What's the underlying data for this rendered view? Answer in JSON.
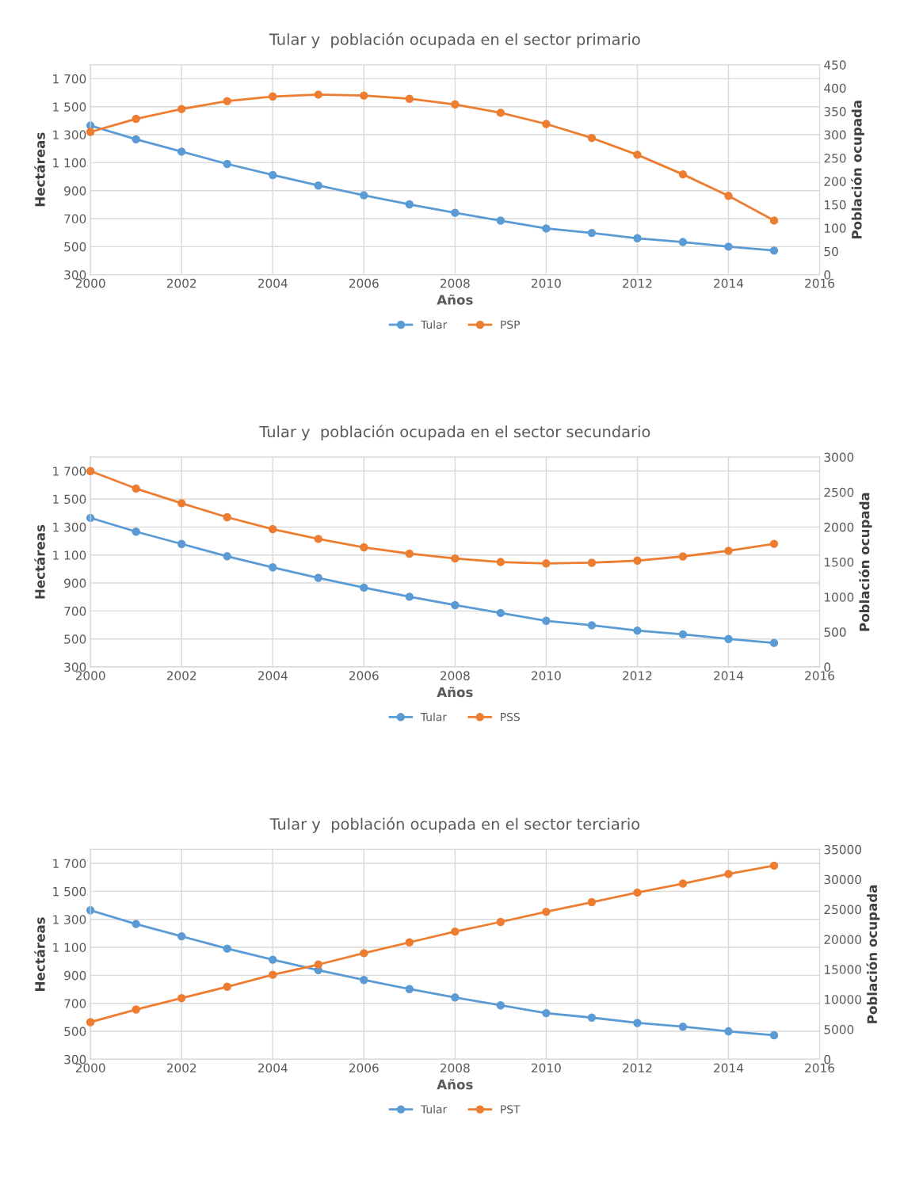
{
  "chart_data": [
    {
      "type": "line",
      "title": "Tular y  población ocupada en el sector primario",
      "xlabel": "Años",
      "ylabel": "Hectáreas",
      "y2label": "Población ocupada",
      "x": [
        2000,
        2001,
        2002,
        2003,
        2004,
        2005,
        2006,
        2007,
        2008,
        2009,
        2010,
        2011,
        2012,
        2013,
        2014,
        2015
      ],
      "xlim": [
        2000,
        2016
      ],
      "xticks": [
        2000,
        2002,
        2004,
        2006,
        2008,
        2010,
        2012,
        2014,
        2016
      ],
      "ylim": [
        300,
        1800
      ],
      "yticks": [
        300,
        500,
        700,
        900,
        {
          "value": 1100,
          "label": "1 100"
        },
        {
          "value": 1300,
          "label": "1 300"
        },
        {
          "value": 1500,
          "label": "1 500"
        },
        {
          "value": 1700,
          "label": "1 700"
        }
      ],
      "y2lim": [
        0,
        450
      ],
      "y2ticks": [
        0,
        50,
        100,
        150,
        200,
        250,
        300,
        350,
        400,
        450
      ],
      "grid": true,
      "legend": "bottom",
      "marker": "circle",
      "line_style": "solid",
      "series": [
        {
          "name": "Tular",
          "color": "#5b9bd5",
          "values": [
            1365,
            1267,
            1179,
            1091,
            1012,
            937,
            867,
            802,
            742,
            686,
            630,
            598,
            560,
            533,
            500,
            472
          ]
        },
        {
          "name": "PSP",
          "color": "#ed7d31",
          "axis": "y2",
          "values": [
            306,
            334,
            355,
            372,
            382,
            386,
            384,
            377,
            365,
            347,
            323,
            293,
            257,
            215,
            169,
            116
          ]
        }
      ]
    },
    {
      "type": "line",
      "title": "Tular y  población ocupada en el sector secundario",
      "xlabel": "Años",
      "ylabel": "Hectáreas",
      "y2label": "Población ocupada",
      "x": [
        2000,
        2001,
        2002,
        2003,
        2004,
        2005,
        2006,
        2007,
        2008,
        2009,
        2010,
        2011,
        2012,
        2013,
        2014,
        2015
      ],
      "xlim": [
        2000,
        2016
      ],
      "xticks": [
        2000,
        2002,
        2004,
        2006,
        2008,
        2010,
        2012,
        2014,
        2016
      ],
      "ylim": [
        300,
        1800
      ],
      "yticks": [
        300,
        500,
        700,
        900,
        {
          "value": 1100,
          "label": "1 100"
        },
        {
          "value": 1300,
          "label": "1 300"
        },
        {
          "value": 1500,
          "label": "1 500"
        },
        {
          "value": 1700,
          "label": "1 700"
        }
      ],
      "y2lim": [
        0,
        3000
      ],
      "y2ticks": [
        0,
        500,
        1000,
        1500,
        2000,
        2500,
        3000
      ],
      "grid": true,
      "legend": "bottom",
      "marker": "circle",
      "line_style": "solid",
      "series": [
        {
          "name": "Tular",
          "color": "#5b9bd5",
          "values": [
            1365,
            1267,
            1179,
            1091,
            1012,
            937,
            867,
            802,
            742,
            686,
            630,
            598,
            560,
            533,
            500,
            472
          ]
        },
        {
          "name": "PSS",
          "color": "#ed7d31",
          "axis": "y2",
          "values": [
            2800,
            2550,
            2340,
            2140,
            1970,
            1830,
            1710,
            1620,
            1550,
            1500,
            1480,
            1490,
            1520,
            1580,
            1660,
            1760
          ]
        }
      ]
    },
    {
      "type": "line",
      "title": "Tular y  población ocupada en el sector terciario",
      "xlabel": "Años",
      "ylabel": "Hectáreas",
      "y2label": "Población ocupada",
      "x": [
        2000,
        2001,
        2002,
        2003,
        2004,
        2005,
        2006,
        2007,
        2008,
        2009,
        2010,
        2011,
        2012,
        2013,
        2014,
        2015
      ],
      "xlim": [
        2000,
        2016
      ],
      "xticks": [
        2000,
        2002,
        2004,
        2006,
        2008,
        2010,
        2012,
        2014,
        2016
      ],
      "ylim": [
        300,
        1800
      ],
      "yticks": [
        300,
        500,
        700,
        900,
        {
          "value": 1100,
          "label": "1 100"
        },
        {
          "value": 1300,
          "label": "1 300"
        },
        {
          "value": 1500,
          "label": "1 500"
        },
        {
          "value": 1700,
          "label": "1 700"
        }
      ],
      "y2lim": [
        0,
        35000
      ],
      "y2ticks": [
        0,
        5000,
        10000,
        15000,
        20000,
        25000,
        30000,
        35000
      ],
      "grid": true,
      "legend": "bottom",
      "marker": "circle",
      "line_style": "solid",
      "series": [
        {
          "name": "Tular",
          "color": "#5b9bd5",
          "values": [
            1365,
            1267,
            1179,
            1091,
            1012,
            937,
            867,
            802,
            742,
            686,
            630,
            598,
            560,
            533,
            500,
            472
          ]
        },
        {
          "name": "PST",
          "color": "#ed7d31",
          "axis": "y2",
          "values": [
            6200,
            8300,
            10200,
            12100,
            14100,
            15800,
            17700,
            19500,
            21300,
            22900,
            24600,
            26200,
            27800,
            29300,
            30900,
            32300
          ]
        }
      ]
    }
  ]
}
